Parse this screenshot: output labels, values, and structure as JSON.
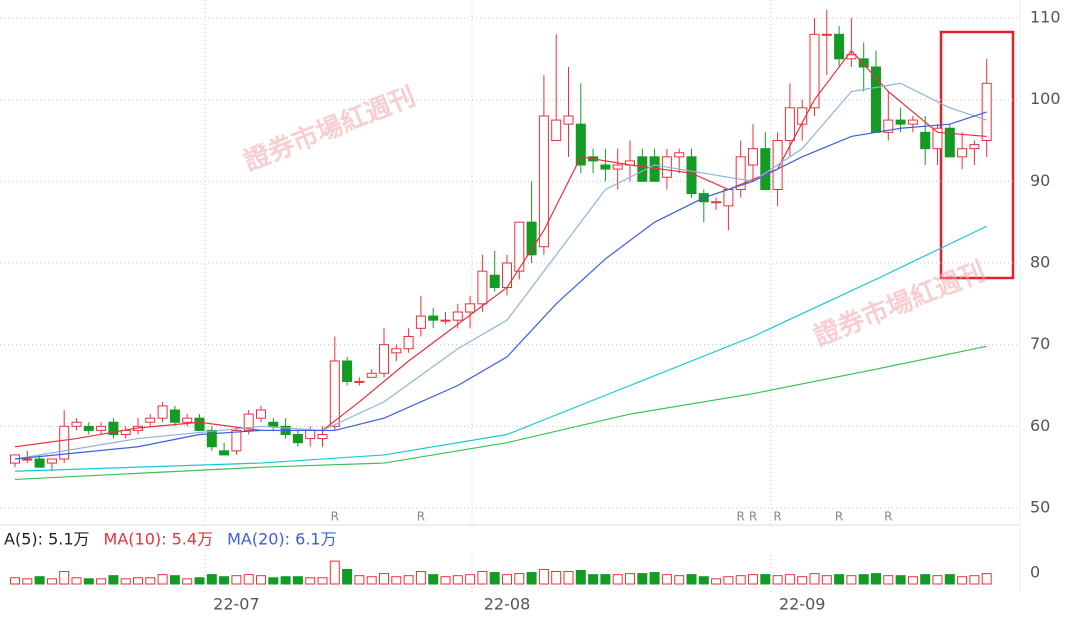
{
  "chart_data": {
    "type": "candlestick",
    "ylim": [
      50,
      110
    ],
    "yticks": [
      50,
      60,
      70,
      80,
      90,
      100,
      110
    ],
    "up_color": "#e8323c",
    "down_color": "#139b24",
    "candles": [
      [
        55.5,
        56.5,
        55,
        56.5
      ],
      [
        56,
        57,
        55.5,
        56
      ],
      [
        56,
        56.5,
        55,
        55
      ],
      [
        55.5,
        56,
        54.5,
        56
      ],
      [
        56,
        62,
        55.5,
        60
      ],
      [
        60,
        61,
        59.5,
        60.5
      ],
      [
        60,
        60.5,
        59,
        59.5
      ],
      [
        59.5,
        60.5,
        59,
        60
      ],
      [
        60.5,
        61,
        58.5,
        59
      ],
      [
        59,
        60,
        58.5,
        59.5
      ],
      [
        59.5,
        61,
        59,
        60
      ],
      [
        60.5,
        61.5,
        60,
        61
      ],
      [
        61,
        63,
        60.5,
        62.5
      ],
      [
        62,
        62.5,
        60,
        60.5
      ],
      [
        60.5,
        61.5,
        60,
        61
      ],
      [
        61,
        61.5,
        59.5,
        59.5
      ],
      [
        59.5,
        60,
        57,
        57.5
      ],
      [
        57,
        58,
        56.5,
        56.5
      ],
      [
        57,
        60,
        56.5,
        59.5
      ],
      [
        59.5,
        62,
        59,
        61.5
      ],
      [
        61,
        62.5,
        60.5,
        62
      ],
      [
        60.5,
        61,
        59.5,
        60
      ],
      [
        60,
        61,
        58.5,
        59
      ],
      [
        59,
        59.5,
        57.5,
        58
      ],
      [
        58.5,
        60,
        57.5,
        59.5
      ],
      [
        58.5,
        60,
        57.5,
        59
      ],
      [
        60,
        71,
        59.5,
        68
      ],
      [
        68,
        68.5,
        65,
        65.5
      ],
      [
        65.5,
        66,
        65,
        65.5
      ],
      [
        66,
        67,
        66,
        66.5
      ],
      [
        66.5,
        72,
        66,
        70
      ],
      [
        69,
        70,
        68,
        69.5
      ],
      [
        69.5,
        72,
        69,
        71
      ],
      [
        72,
        76,
        71,
        73.5
      ],
      [
        73.5,
        74.5,
        72,
        73
      ],
      [
        73,
        74,
        72.5,
        73
      ],
      [
        73,
        75,
        72,
        74
      ],
      [
        74,
        76,
        72,
        75
      ],
      [
        75,
        81,
        74,
        79
      ],
      [
        78.5,
        81.5,
        76.5,
        77
      ],
      [
        77,
        81,
        76,
        80
      ],
      [
        79,
        85,
        78,
        85
      ],
      [
        85,
        90,
        80,
        81
      ],
      [
        82,
        103,
        81,
        98
      ],
      [
        95,
        108,
        95,
        97.5
      ],
      [
        97,
        104,
        93,
        98
      ],
      [
        97,
        102,
        91,
        92
      ],
      [
        93,
        94,
        91,
        92.5
      ],
      [
        92,
        94,
        90,
        91.5
      ],
      [
        91.5,
        94,
        89,
        92
      ],
      [
        92,
        95,
        90,
        92.5
      ],
      [
        93,
        94,
        90,
        90
      ],
      [
        93,
        94,
        90,
        90
      ],
      [
        90.5,
        94,
        89,
        93
      ],
      [
        93,
        94,
        91,
        93.5
      ],
      [
        93,
        94,
        88,
        88.5
      ],
      [
        88.5,
        89,
        85,
        87.5
      ],
      [
        87.5,
        88,
        86.5,
        87.5
      ],
      [
        87,
        89,
        84,
        89
      ],
      [
        89,
        95,
        88,
        93
      ],
      [
        92,
        97,
        90,
        94
      ],
      [
        94,
        96,
        89,
        89
      ],
      [
        89,
        96,
        87,
        95
      ],
      [
        95,
        102,
        93,
        99
      ],
      [
        97,
        100,
        95,
        99
      ],
      [
        99,
        110,
        98,
        108
      ],
      [
        108,
        111,
        103,
        108
      ],
      [
        108,
        109,
        104,
        105
      ],
      [
        105,
        110,
        104,
        105.5
      ],
      [
        105,
        107,
        101,
        104
      ],
      [
        104,
        106,
        96,
        96
      ],
      [
        96,
        101,
        95,
        97.5
      ],
      [
        97.5,
        99,
        96,
        97
      ],
      [
        97,
        98,
        96,
        97.5
      ],
      [
        96,
        98,
        92,
        94
      ],
      [
        94,
        97,
        92,
        96.5
      ],
      [
        96.5,
        97,
        93,
        93
      ],
      [
        93,
        96,
        91.5,
        94
      ],
      [
        94,
        95,
        92,
        94.5
      ],
      [
        95,
        105,
        93,
        102
      ]
    ],
    "ma_lines": [
      {
        "color": "#e8323c",
        "x": [
          0,
          5,
          10,
          15,
          20,
          25,
          28,
          32,
          36,
          40,
          43,
          46,
          50,
          55,
          58,
          62,
          65,
          68,
          71,
          75,
          79
        ],
        "values": [
          57.5,
          58.5,
          59.8,
          60.5,
          59.5,
          59.5,
          63,
          68,
          72.5,
          77,
          84,
          93,
          92,
          91,
          89,
          91.5,
          100,
          106,
          101,
          96,
          95.5
        ]
      },
      {
        "color": "#8fb4dc",
        "x": [
          0,
          10,
          20,
          25,
          30,
          36,
          40,
          44,
          48,
          52,
          56,
          60,
          64,
          68,
          72,
          76,
          79
        ],
        "values": [
          56,
          58.5,
          60,
          59.5,
          63,
          69.5,
          73,
          81,
          89,
          92,
          91,
          90,
          94,
          101,
          102,
          99,
          97.5
        ]
      },
      {
        "color": "#3b5fe0",
        "x": [
          0,
          10,
          15,
          20,
          26,
          30,
          36,
          40,
          44,
          48,
          52,
          56,
          60,
          64,
          68,
          72,
          76,
          79
        ],
        "values": [
          56,
          57.5,
          59,
          59.5,
          59.5,
          61,
          65,
          68.5,
          75,
          80.5,
          85,
          88,
          90,
          93,
          95.5,
          96.5,
          97,
          98.5
        ]
      },
      {
        "color": "#19c8d8",
        "x": [
          0,
          20,
          30,
          40,
          50,
          60,
          70,
          79
        ],
        "values": [
          54.5,
          55.5,
          56.5,
          59,
          65,
          71,
          78,
          84.5
        ]
      },
      {
        "color": "#3cc05a",
        "x": [
          0,
          20,
          30,
          40,
          50,
          60,
          70,
          79
        ],
        "values": [
          53.5,
          55,
          55.5,
          58,
          61.5,
          64,
          67,
          69.8
        ]
      }
    ],
    "r_markers": {
      "label": "R",
      "x": [
        26,
        33,
        59,
        60,
        62,
        67,
        71
      ]
    },
    "volume_legend": [
      {
        "label": "A(5): 5.1万",
        "color": "#222"
      },
      {
        "label": "MA(10): 5.4万",
        "color": "#e8323c"
      },
      {
        "label": "MA(20): 6.1万",
        "color": "#3b5fe0"
      }
    ],
    "volume_ylim": [
      0,
      25
    ],
    "volume_yticks": [
      0
    ],
    "volumes": [
      6,
      5,
      7,
      5,
      12,
      6,
      5,
      5,
      8,
      5,
      6,
      6,
      9,
      8,
      5,
      6,
      9,
      7,
      8,
      9,
      8,
      6,
      7,
      7,
      6,
      6,
      22,
      14,
      8,
      7,
      10,
      7,
      8,
      12,
      9,
      7,
      8,
      9,
      12,
      11,
      9,
      10,
      11,
      14,
      12,
      12,
      13,
      9,
      9,
      9,
      10,
      10,
      11,
      9,
      8,
      9,
      7,
      5,
      7,
      8,
      9,
      9,
      8,
      9,
      7,
      10,
      8,
      9,
      8,
      9,
      10,
      8,
      8,
      7,
      9,
      8,
      9,
      7,
      8,
      10
    ],
    "x_labels": [
      {
        "x": 18,
        "label": "22-07"
      },
      {
        "x": 40,
        "label": "22-08"
      },
      {
        "x": 64,
        "label": "22-09"
      }
    ],
    "watermark": "證券市場紅週刊"
  }
}
